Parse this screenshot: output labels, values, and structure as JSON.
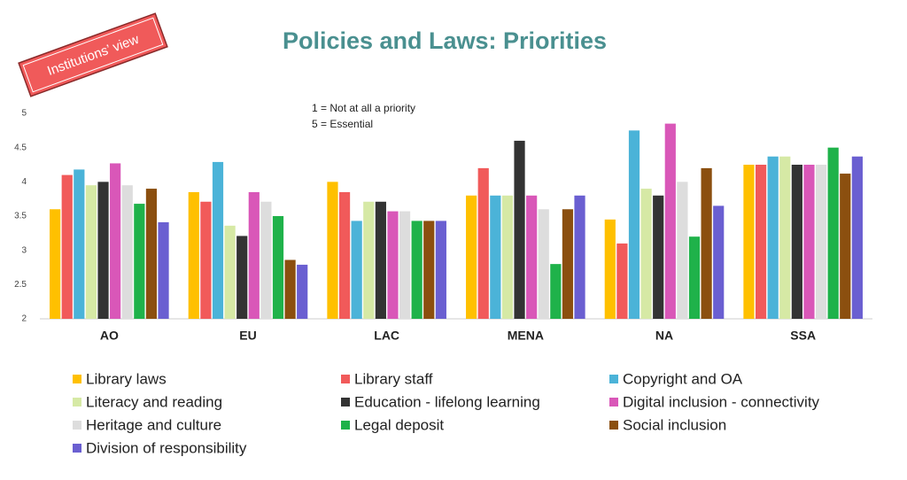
{
  "chart_data": {
    "type": "bar",
    "title": "Policies and Laws: Priorities",
    "badge": "Institutions’ view",
    "annotations": [
      "1 = Not at all a priority",
      "5 = Essential"
    ],
    "categories": [
      "AO",
      "EU",
      "LAC",
      "MENA",
      "NA",
      "SSA"
    ],
    "ylim": [
      2,
      5
    ],
    "yticks": [
      2,
      2.5,
      3,
      3.5,
      4,
      4.5,
      5
    ],
    "grid": false,
    "series": [
      {
        "name": "Library laws",
        "color": "#ffc000",
        "values": [
          3.6,
          3.85,
          4.0,
          3.8,
          3.45,
          4.25
        ]
      },
      {
        "name": "Library staff",
        "color": "#f15a5a",
        "values": [
          4.1,
          3.71,
          3.85,
          4.2,
          3.1,
          4.25
        ]
      },
      {
        "name": "Copyright and OA",
        "color": "#4bb3d8",
        "values": [
          4.18,
          4.29,
          3.43,
          3.8,
          4.75,
          4.37
        ]
      },
      {
        "name": "Literacy and reading",
        "color": "#d6e9a5",
        "values": [
          3.95,
          3.36,
          3.71,
          3.8,
          3.9,
          4.37
        ]
      },
      {
        "name": "Education - lifelong learning",
        "color": "#333333",
        "values": [
          4.0,
          3.21,
          3.71,
          4.6,
          3.8,
          4.25
        ]
      },
      {
        "name": "Digital inclusion - connectivity",
        "color": "#d957b8",
        "values": [
          4.27,
          3.85,
          3.57,
          3.8,
          4.85,
          4.25
        ]
      },
      {
        "name": "Heritage and culture",
        "color": "#dddddd",
        "values": [
          3.95,
          3.71,
          3.57,
          3.6,
          4.0,
          4.25
        ]
      },
      {
        "name": "Legal deposit",
        "color": "#1fb24a",
        "values": [
          3.68,
          3.5,
          3.43,
          2.8,
          3.2,
          4.5
        ]
      },
      {
        "name": "Social inclusion",
        "color": "#8b4f0f",
        "values": [
          3.9,
          2.86,
          3.43,
          3.6,
          4.2,
          4.12
        ]
      },
      {
        "name": "Division of responsibility",
        "color": "#6a5fd1",
        "values": [
          3.41,
          2.79,
          3.43,
          3.8,
          3.65,
          4.37
        ]
      }
    ]
  }
}
